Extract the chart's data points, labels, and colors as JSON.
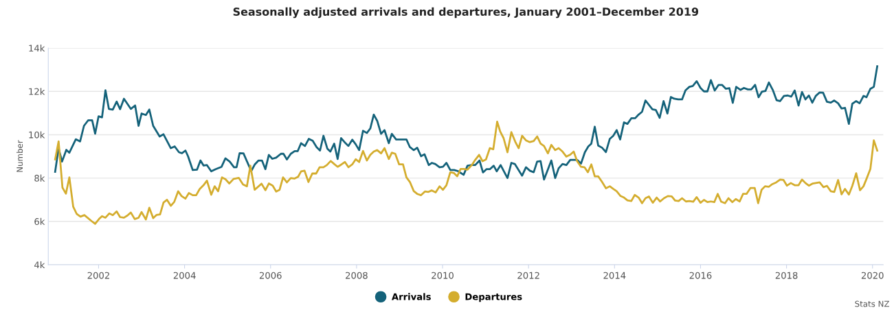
{
  "chart_data": {
    "type": "line",
    "title": "Seasonally adjusted arrivals and departures, January 2001–December 2019",
    "ylabel": "Number",
    "xlim": [
      2000.83,
      2020.25
    ],
    "xticks": [
      2002,
      2004,
      2006,
      2008,
      2010,
      2012,
      2014,
      2016,
      2018,
      2020
    ],
    "ylim": [
      4000,
      14000
    ],
    "yticks": [
      {
        "value": 4000,
        "label": "4k"
      },
      {
        "value": 6000,
        "label": "6k"
      },
      {
        "value": 8000,
        "label": "8k"
      },
      {
        "value": 10000,
        "label": "10k"
      },
      {
        "value": 12000,
        "label": "12k"
      },
      {
        "value": 14000,
        "label": "14k"
      }
    ],
    "grid": "y",
    "legend": "bottom",
    "annotations": [
      "Stats NZ"
    ],
    "series": [
      {
        "name": "Arrivals",
        "color": "#14627a",
        "x": [
          2000.99,
          2001.07,
          2001.15,
          2001.25,
          2001.32,
          2001.47,
          2001.57,
          2001.66,
          2001.76,
          2001.85,
          2001.92,
          2002.0,
          2002.08,
          2002.16,
          2002.24,
          2002.33,
          2002.42,
          2002.5,
          2002.59,
          2002.75,
          2002.85,
          2002.93,
          2003.0,
          2003.1,
          2003.18,
          2003.27,
          2003.42,
          2003.51,
          2003.68,
          2003.77,
          2003.87,
          2003.94,
          2004.02,
          2004.08,
          2004.19,
          2004.29,
          2004.37,
          2004.44,
          2004.52,
          2004.62,
          2004.72,
          2004.86,
          2004.95,
          2005.05,
          2005.15,
          2005.21,
          2005.28,
          2005.37,
          2005.55,
          2005.63,
          2005.72,
          2005.8,
          2005.88,
          2005.96,
          2006.04,
          2006.13,
          2006.24,
          2006.3,
          2006.38,
          2006.47,
          2006.56,
          2006.63,
          2006.71,
          2006.8,
          2006.89,
          2006.98,
          2007.07,
          2007.15,
          2007.23,
          2007.32,
          2007.39,
          2007.48,
          2007.56,
          2007.64,
          2007.72,
          2007.81,
          2007.9,
          2007.98,
          2008.06,
          2008.15,
          2008.24,
          2008.32,
          2008.4,
          2008.48,
          2008.57,
          2008.65,
          2008.75,
          2008.82,
          2008.92,
          2009.16,
          2009.24,
          2009.33,
          2009.41,
          2009.5,
          2009.58,
          2009.68,
          2009.75,
          2009.83,
          2009.93,
          2010.01,
          2010.09,
          2010.18,
          2010.27,
          2010.36,
          2010.49,
          2010.58,
          2010.68,
          2010.76,
          2010.86,
          2010.94,
          2011.02,
          2011.1,
          2011.19,
          2011.26,
          2011.35,
          2011.51,
          2011.6,
          2011.68,
          2011.85,
          2011.94,
          2012.03,
          2012.12,
          2012.2,
          2012.28,
          2012.36,
          2012.53,
          2012.62,
          2012.7,
          2012.79,
          2012.88,
          2012.97,
          2013.13,
          2013.22,
          2013.31,
          2013.39,
          2013.46,
          2013.54,
          2013.62,
          2013.71,
          2013.8,
          2013.89,
          2013.97,
          2014.05,
          2014.13,
          2014.22,
          2014.3,
          2014.39,
          2014.48,
          2014.56,
          2014.64,
          2014.72,
          2014.88,
          2014.96,
          2015.05,
          2015.14,
          2015.23,
          2015.31,
          2015.39,
          2015.48,
          2015.57,
          2015.65,
          2015.74,
          2015.82,
          2015.91,
          2016.0,
          2016.08,
          2016.16,
          2016.24,
          2016.33,
          2016.42,
          2016.5,
          2016.59,
          2016.67,
          2016.75,
          2016.83,
          2016.93,
          2017.01,
          2017.1,
          2017.18,
          2017.27,
          2017.35,
          2017.43,
          2017.51,
          2017.59,
          2017.68,
          2017.77,
          2017.85,
          2017.94,
          2018.03,
          2018.11,
          2018.19,
          2018.28,
          2018.36,
          2018.44,
          2018.52,
          2018.6,
          2018.68,
          2018.77,
          2018.85,
          2018.94,
          2019.03,
          2019.11,
          2019.2,
          2019.28,
          2019.36,
          2019.45,
          2019.53,
          2019.62,
          2019.7,
          2019.79,
          2019.86,
          2019.95,
          2020.03,
          2020.11
        ],
        "values": [
          8290,
          9380,
          8760,
          9300,
          9170,
          9790,
          9690,
          10410,
          10670,
          10670,
          10050,
          10850,
          10800,
          12050,
          11190,
          11160,
          11530,
          11180,
          11660,
          11190,
          11350,
          10410,
          10980,
          10910,
          11160,
          10410,
          9920,
          10020,
          9380,
          9460,
          9190,
          9150,
          9270,
          9010,
          8370,
          8390,
          8810,
          8580,
          8600,
          8310,
          8410,
          8520,
          8910,
          8760,
          8500,
          8500,
          9150,
          9140,
          8320,
          8620,
          8810,
          8810,
          8410,
          9070,
          8890,
          8940,
          9120,
          9120,
          8860,
          9120,
          9240,
          9240,
          9610,
          9480,
          9810,
          9720,
          9430,
          9270,
          9950,
          9360,
          9220,
          9590,
          8880,
          9840,
          9660,
          9480,
          9770,
          9560,
          9290,
          10180,
          10080,
          10290,
          10930,
          10640,
          10040,
          10210,
          9610,
          10040,
          9780,
          9780,
          9430,
          9290,
          9400,
          9010,
          9100,
          8600,
          8700,
          8650,
          8500,
          8520,
          8700,
          8370,
          8370,
          8320,
          8150,
          8570,
          8600,
          8600,
          8810,
          8260,
          8410,
          8410,
          8570,
          8310,
          8600,
          8000,
          8700,
          8650,
          8110,
          8500,
          8340,
          8270,
          8760,
          8780,
          7930,
          8810,
          8000,
          8450,
          8650,
          8600,
          8840,
          8840,
          8670,
          9190,
          9460,
          9590,
          10370,
          9500,
          9400,
          9200,
          9810,
          9950,
          10210,
          9780,
          10570,
          10500,
          10760,
          10760,
          10930,
          11060,
          11580,
          11170,
          11140,
          10780,
          11550,
          10980,
          11740,
          11660,
          11630,
          11630,
          12050,
          12210,
          12250,
          12470,
          12160,
          12000,
          12000,
          12520,
          12040,
          12300,
          12300,
          12120,
          12150,
          11470,
          12210,
          12070,
          12160,
          12090,
          12090,
          12300,
          11730,
          11990,
          12020,
          12410,
          12070,
          11590,
          11550,
          11790,
          11810,
          11760,
          12040,
          11350,
          11970,
          11630,
          11810,
          11480,
          11790,
          11950,
          11940,
          11520,
          11480,
          11580,
          11450,
          11210,
          11240,
          10500,
          11430,
          11550,
          11450,
          11790,
          11730,
          12120,
          12210,
          13160
        ]
      },
      {
        "name": "Departures",
        "color": "#d4ad2e",
        "x": [
          2000.99,
          2001.07,
          2001.16,
          2001.24,
          2001.32,
          2001.41,
          2001.49,
          2001.58,
          2001.67,
          2001.84,
          2001.92,
          2002.01,
          2002.08,
          2002.16,
          2002.25,
          2002.33,
          2002.42,
          2002.5,
          2002.59,
          2002.67,
          2002.75,
          2002.84,
          2002.93,
          2003.0,
          2003.1,
          2003.18,
          2003.27,
          2003.35,
          2003.43,
          2003.51,
          2003.59,
          2003.68,
          2003.76,
          2003.85,
          2003.93,
          2004.02,
          2004.1,
          2004.19,
          2004.27,
          2004.35,
          2004.44,
          2004.52,
          2004.62,
          2004.7,
          2004.78,
          2004.87,
          2004.95,
          2005.04,
          2005.14,
          2005.26,
          2005.36,
          2005.45,
          2005.53,
          2005.63,
          2005.79,
          2005.88,
          2005.96,
          2006.05,
          2006.13,
          2006.21,
          2006.29,
          2006.38,
          2006.47,
          2006.56,
          2006.64,
          2006.71,
          2006.79,
          2006.88,
          2006.97,
          2007.06,
          2007.14,
          2007.23,
          2007.31,
          2007.4,
          2007.48,
          2007.56,
          2007.65,
          2007.73,
          2007.81,
          2007.9,
          2007.98,
          2008.06,
          2008.15,
          2008.24,
          2008.32,
          2008.4,
          2008.48,
          2008.57,
          2008.65,
          2008.75,
          2008.82,
          2008.9,
          2008.99,
          2009.08,
          2009.16,
          2009.24,
          2009.33,
          2009.41,
          2009.5,
          2009.59,
          2009.67,
          2009.75,
          2009.84,
          2009.93,
          2010.01,
          2010.09,
          2010.18,
          2010.26,
          2010.34,
          2010.42,
          2010.5,
          2010.58,
          2010.68,
          2010.76,
          2010.85,
          2010.93,
          2011.01,
          2011.1,
          2011.18,
          2011.27,
          2011.34,
          2011.42,
          2011.51,
          2011.6,
          2011.69,
          2011.77,
          2011.85,
          2011.94,
          2012.03,
          2012.12,
          2012.2,
          2012.28,
          2012.36,
          2012.45,
          2012.53,
          2012.62,
          2012.7,
          2012.79,
          2012.88,
          2012.97,
          2013.05,
          2013.13,
          2013.22,
          2013.3,
          2013.38,
          2013.46,
          2013.54,
          2013.62,
          2013.71,
          2013.8,
          2013.89,
          2013.97,
          2014.05,
          2014.14,
          2014.22,
          2014.3,
          2014.39,
          2014.47,
          2014.56,
          2014.64,
          2014.72,
          2014.8,
          2014.89,
          2014.98,
          2015.06,
          2015.15,
          2015.24,
          2015.33,
          2015.41,
          2015.49,
          2015.57,
          2015.66,
          2015.74,
          2015.83,
          2015.91,
          2016.0,
          2016.08,
          2016.16,
          2016.24,
          2016.32,
          2016.4,
          2016.48,
          2016.57,
          2016.65,
          2016.74,
          2016.82,
          2016.91,
          2016.99,
          2017.07,
          2017.16,
          2017.26,
          2017.34,
          2017.42,
          2017.5,
          2017.59,
          2017.67,
          2017.76,
          2017.85,
          2017.93,
          2018.01,
          2018.1,
          2018.19,
          2018.28,
          2018.36,
          2018.44,
          2018.52,
          2018.61,
          2018.77,
          2018.86,
          2018.94,
          2019.03,
          2019.11,
          2019.2,
          2019.28,
          2019.36,
          2019.45,
          2019.53,
          2019.62,
          2019.71,
          2019.79,
          2019.86,
          2019.95,
          2020.03,
          2020.11
        ],
        "values": [
          8860,
          9690,
          7560,
          7280,
          8030,
          6680,
          6350,
          6220,
          6290,
          6010,
          5890,
          6110,
          6240,
          6170,
          6370,
          6290,
          6460,
          6200,
          6170,
          6270,
          6410,
          6110,
          6170,
          6430,
          6090,
          6630,
          6150,
          6300,
          6320,
          6870,
          7000,
          6720,
          6900,
          7390,
          7170,
          7050,
          7310,
          7210,
          7210,
          7490,
          7670,
          7880,
          7230,
          7620,
          7390,
          8030,
          7950,
          7750,
          7960,
          8010,
          7700,
          7620,
          8570,
          7460,
          7740,
          7440,
          7750,
          7650,
          7380,
          7460,
          8030,
          7800,
          8000,
          7980,
          8060,
          8310,
          8340,
          7820,
          8210,
          8210,
          8500,
          8500,
          8600,
          8790,
          8650,
          8520,
          8630,
          8740,
          8500,
          8630,
          8870,
          8740,
          9250,
          8810,
          9070,
          9220,
          9290,
          9140,
          9380,
          8880,
          9170,
          9120,
          8630,
          8630,
          8030,
          7820,
          7400,
          7270,
          7210,
          7380,
          7360,
          7430,
          7340,
          7620,
          7460,
          7670,
          8270,
          8240,
          8080,
          8420,
          8420,
          8390,
          8600,
          8840,
          9070,
          8780,
          8860,
          9380,
          9330,
          10600,
          10150,
          9840,
          9190,
          10120,
          9680,
          9380,
          9950,
          9740,
          9660,
          9710,
          9920,
          9590,
          9480,
          9140,
          9530,
          9290,
          9380,
          9220,
          8990,
          9080,
          9220,
          8780,
          8520,
          8500,
          8270,
          8630,
          8080,
          8080,
          7820,
          7530,
          7620,
          7500,
          7390,
          7170,
          7100,
          6970,
          6940,
          7220,
          7100,
          6840,
          7070,
          7150,
          6860,
          7100,
          6920,
          7070,
          7170,
          7150,
          6960,
          6940,
          7070,
          6920,
          6940,
          6910,
          7120,
          6860,
          6990,
          6890,
          6920,
          6890,
          7270,
          6910,
          6840,
          7070,
          6890,
          7030,
          6920,
          7270,
          7270,
          7540,
          7540,
          6840,
          7460,
          7620,
          7600,
          7720,
          7800,
          7930,
          7910,
          7650,
          7770,
          7670,
          7670,
          7930,
          7770,
          7650,
          7750,
          7800,
          7580,
          7640,
          7390,
          7360,
          7910,
          7250,
          7500,
          7240,
          7640,
          8220,
          7440,
          7620,
          7960,
          8420,
          9740,
          9270
        ]
      }
    ]
  }
}
